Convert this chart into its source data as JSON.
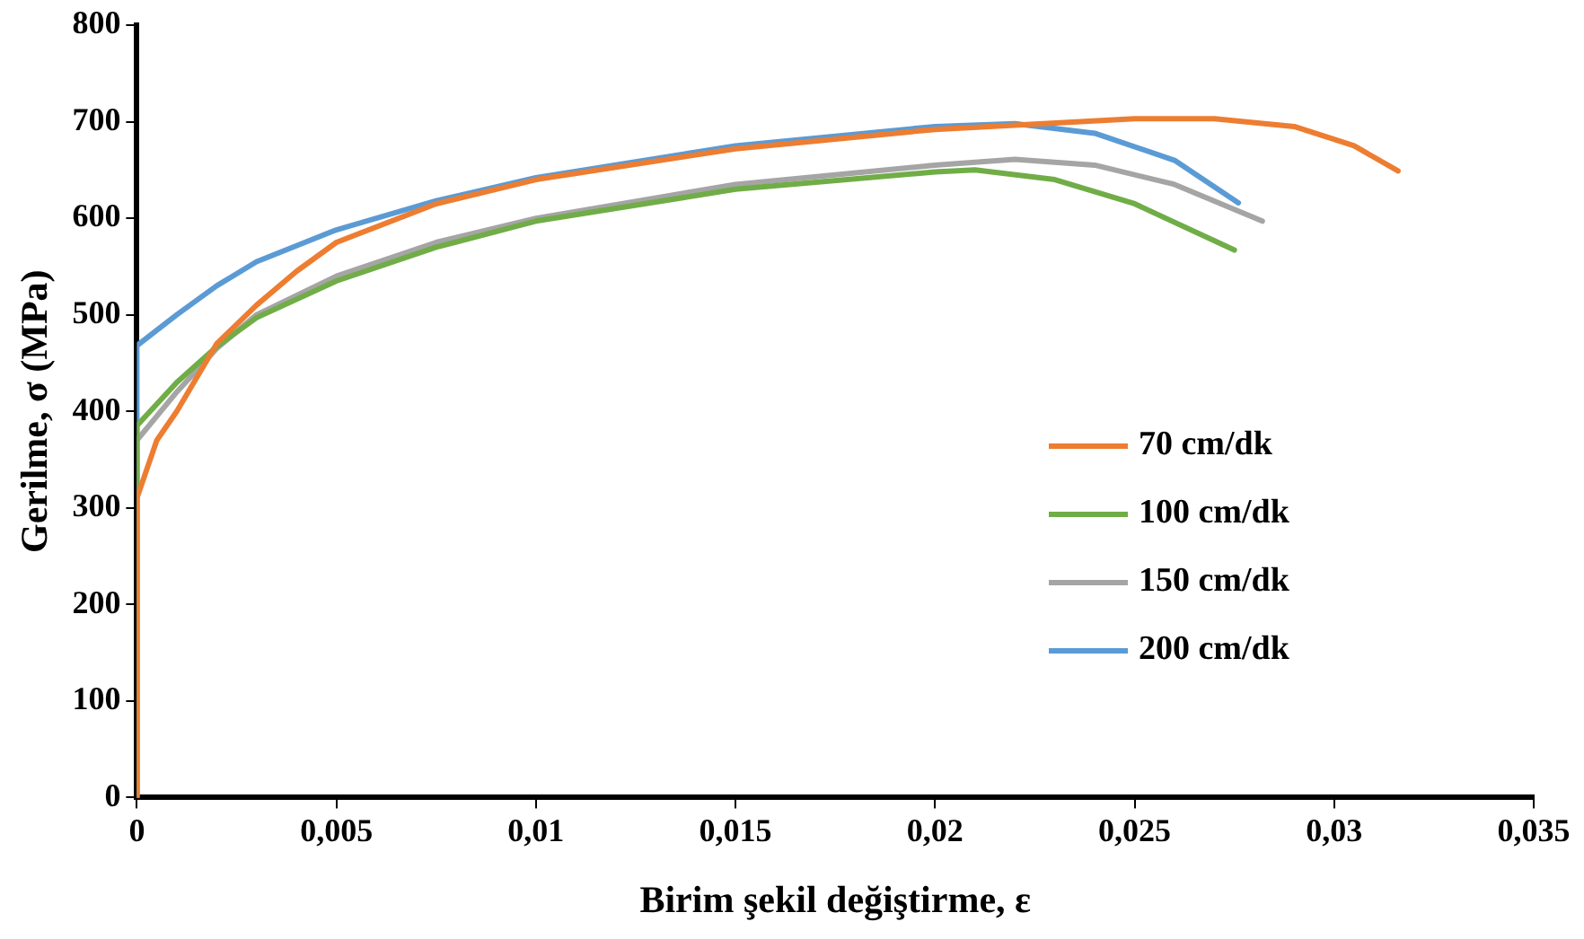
{
  "chart_data": {
    "type": "line",
    "xlabel": "Birim şekil değiştirme, ε",
    "ylabel": "Gerilme, σ (MPa)",
    "xlim": [
      0,
      0.035
    ],
    "ylim": [
      0,
      800
    ],
    "xticks": [
      {
        "value": 0,
        "label": "0"
      },
      {
        "value": 0.005,
        "label": "0,005"
      },
      {
        "value": 0.01,
        "label": "0,01"
      },
      {
        "value": 0.015,
        "label": "0,015"
      },
      {
        "value": 0.02,
        "label": "0,02"
      },
      {
        "value": 0.025,
        "label": "0,025"
      },
      {
        "value": 0.03,
        "label": "0,03"
      },
      {
        "value": 0.035,
        "label": "0,035"
      }
    ],
    "yticks": [
      0,
      100,
      200,
      300,
      400,
      500,
      600,
      700,
      800
    ],
    "grid": false,
    "legend": "right",
    "marker": "none",
    "line_style": "solid",
    "series": [
      {
        "name": "70 cm/dk",
        "color": "#ed7d31",
        "x": [
          0,
          0,
          0.0005,
          0.001,
          0.002,
          0.003,
          0.004,
          0.005,
          0.0075,
          0.01,
          0.015,
          0.02,
          0.025,
          0.027,
          0.029,
          0.0305,
          0.0316
        ],
        "values": [
          0,
          310,
          370,
          400,
          470,
          510,
          545,
          575,
          615,
          640,
          672,
          692,
          703,
          703,
          695,
          675,
          649
        ]
      },
      {
        "name": "100 cm/dk",
        "color": "#70ad47",
        "x": [
          0,
          0,
          0.001,
          0.002,
          0.003,
          0.005,
          0.0075,
          0.01,
          0.015,
          0.02,
          0.021,
          0.023,
          0.025,
          0.0275
        ],
        "values": [
          0,
          385,
          430,
          467,
          497,
          535,
          570,
          597,
          630,
          648,
          650,
          640,
          615,
          567
        ]
      },
      {
        "name": "150 cm/dk",
        "color": "#a5a5a5",
        "x": [
          0,
          0,
          0.001,
          0.002,
          0.003,
          0.005,
          0.0075,
          0.01,
          0.015,
          0.02,
          0.022,
          0.024,
          0.026,
          0.0282
        ],
        "values": [
          0,
          370,
          420,
          465,
          500,
          540,
          575,
          600,
          635,
          655,
          661,
          655,
          635,
          597
        ]
      },
      {
        "name": "200 cm/dk",
        "color": "#5b9bd5",
        "x": [
          0,
          0,
          0.001,
          0.002,
          0.003,
          0.005,
          0.0075,
          0.01,
          0.015,
          0.02,
          0.022,
          0.024,
          0.026,
          0.0276
        ],
        "values": [
          0,
          468,
          500,
          530,
          555,
          588,
          618,
          642,
          675,
          695,
          698,
          688,
          660,
          616
        ]
      }
    ]
  }
}
